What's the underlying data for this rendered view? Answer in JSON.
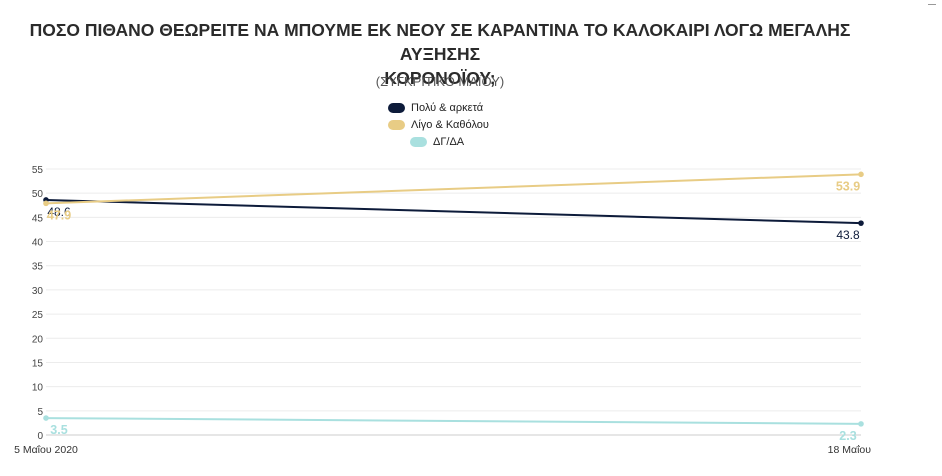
{
  "chart_data": {
    "type": "line",
    "title_line1": "ΠΟΣΟ ΠΙΘΑΝΟ ΘΕΩΡΕΙΤΕ ΝΑ ΜΠΟΥΜΕ ΕΚ ΝΕΟΥ ΣΕ ΚΑΡΑΝΤΙΝΑ ΤΟ ΚΑΛΟΚΑΙΡΙ ΛΟΓΩ ΜΕΓΑΛΗΣ ΑΥΞΗΣΗΣ",
    "title_line2": "ΚΟΡΟΝΟΪΟΥ;",
    "subtitle": "(ΣΥΓΚΡΙΤΙΚΟ ΜΑΪΟΥ)",
    "categories": [
      "5 Μαΐου 2020",
      "18 Μαΐου"
    ],
    "ylim": [
      0,
      55
    ],
    "yticks": [
      0,
      5,
      10,
      15,
      20,
      25,
      30,
      35,
      40,
      45,
      50,
      55
    ],
    "grid": true,
    "legend_position": "top-center",
    "series": [
      {
        "name": "Πολύ & αρκετά",
        "values": [
          48.6,
          43.8
        ],
        "labels": [
          "48.6",
          "43.8"
        ],
        "color": "#0d1b3a"
      },
      {
        "name": "Λίγο & Καθόλου",
        "values": [
          47.9,
          53.9
        ],
        "labels": [
          "47.9",
          "53.9"
        ],
        "color": "#e8cc85"
      },
      {
        "name": "ΔΓ/ΔΑ",
        "values": [
          3.5,
          2.3
        ],
        "labels": [
          "3.5",
          "2.3"
        ],
        "color": "#a9e0df"
      }
    ]
  }
}
